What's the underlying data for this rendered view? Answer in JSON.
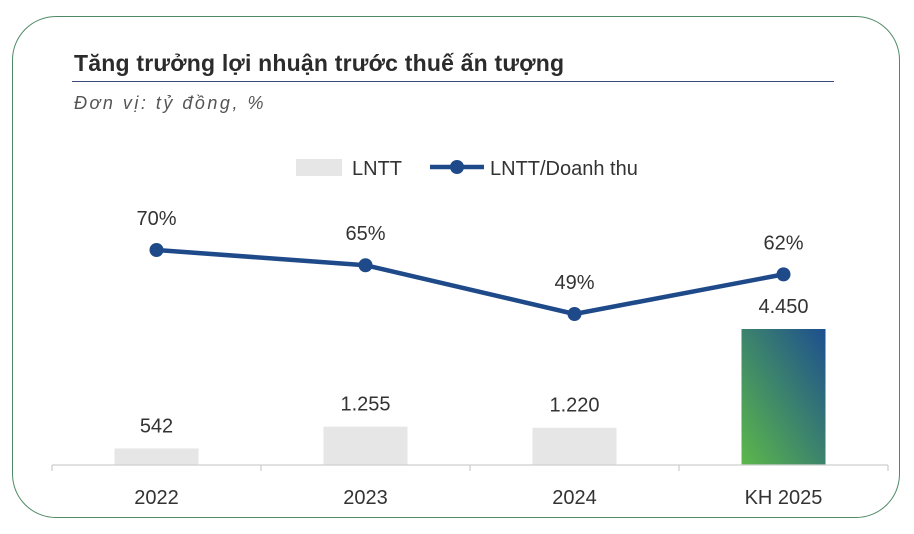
{
  "header": {
    "title": "Tăng trưởng lợi nhuận trước thuế ấn tượng",
    "subtitle": "Đơn vị: tỷ đồng, %"
  },
  "colors": {
    "bar": "#e6e6e6",
    "bar_highlight_start": "#5cb84a",
    "bar_highlight_end": "#1d4f8f",
    "line": "#1f4a8a",
    "border": "#4f8a66"
  },
  "chart_data": {
    "type": "bar",
    "categories": [
      "2022",
      "2023",
      "2024",
      "KH 2025"
    ],
    "series": [
      {
        "name": "LNTT",
        "type": "bar",
        "values": [
          542,
          1255,
          1220,
          4450
        ],
        "labels": [
          "542",
          "1.255",
          "1.220",
          "4.450"
        ]
      },
      {
        "name": "LNTT/Doanh thu",
        "type": "line",
        "values": [
          70,
          65,
          49,
          62
        ],
        "labels": [
          "70%",
          "65%",
          "49%",
          "62%"
        ]
      }
    ],
    "highlight_category": "KH 2025",
    "legend_position": "top-center",
    "grid": false
  }
}
